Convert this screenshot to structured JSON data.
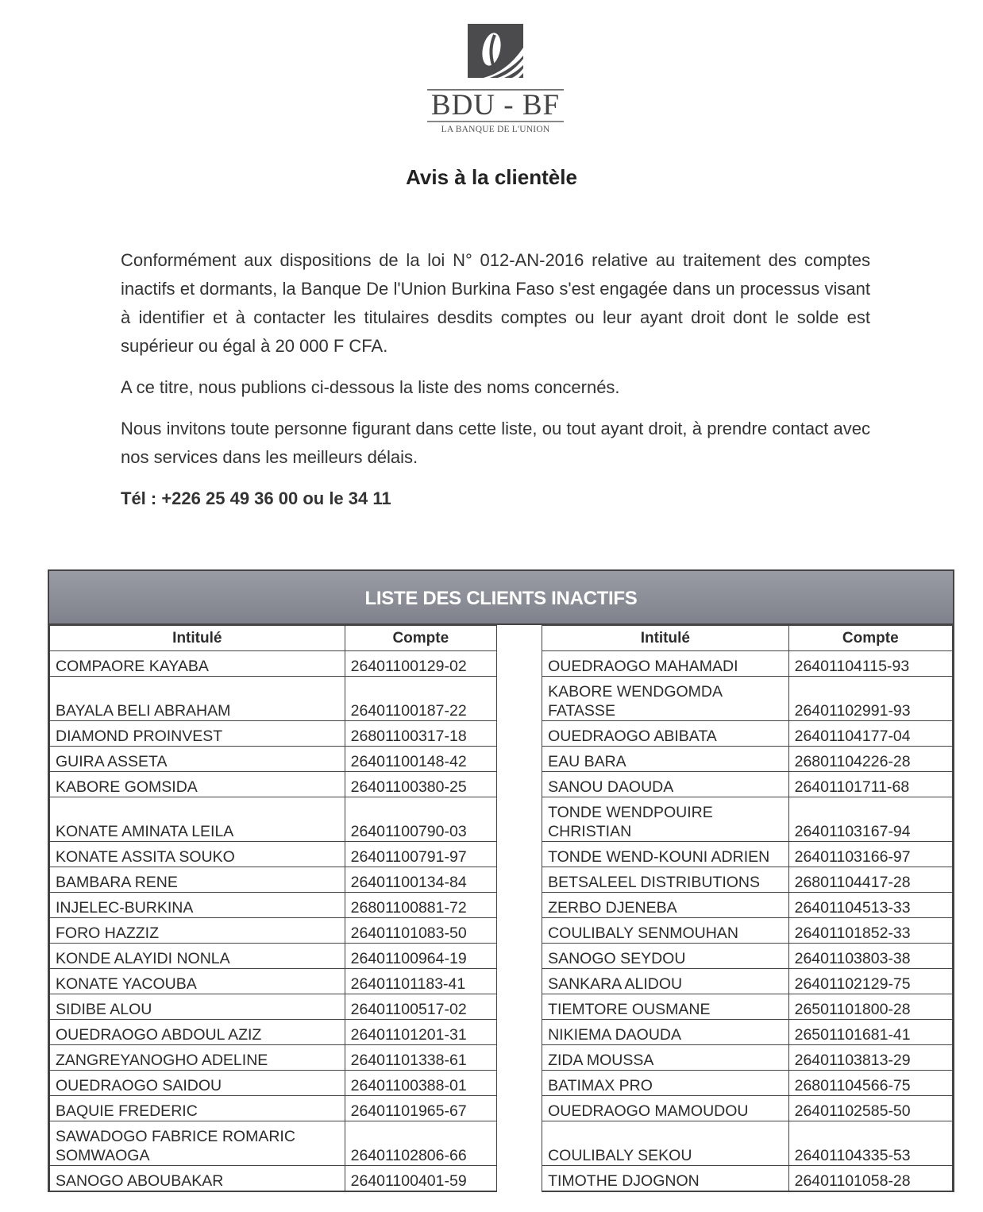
{
  "logo": {
    "name": "BDU - BF",
    "tagline": "LA BANQUE DE L'UNION"
  },
  "title": "Avis à la clientèle",
  "paragraphs": [
    "Conformément aux dispositions de la loi N° 012-AN-2016 relative au traitement des comptes inactifs et dormants, la Banque De l'Union Burkina Faso s'est engagée dans un processus visant à identifier et à contacter les titulaires desdits comptes ou leur ayant droit dont le solde est supérieur ou égal à 20 000 F CFA.",
    "A ce titre, nous publions ci-dessous la liste des noms concernés.",
    "Nous invitons toute personne figurant dans cette liste, ou tout ayant droit, à prendre contact avec nos services dans les meilleurs délais."
  ],
  "phone": "Tél : +226 25 49 36 00 ou le 34 11",
  "table": {
    "title": "LISTE DES CLIENTS INACTIFS",
    "headers": [
      "Intitulé",
      "Compte"
    ],
    "rows": [
      {
        "left": [
          "COMPAORE  KAYABA",
          "26401100129-02"
        ],
        "right": [
          "OUEDRAOGO  MAHAMADI",
          "26401104115-93"
        ]
      },
      {
        "tall": true,
        "left": [
          "BAYALA  BELI ABRAHAM",
          "26401100187-22"
        ],
        "right": [
          "KABORE  WENDGOMDA FATASSE",
          "26401102991-93"
        ]
      },
      {
        "left": [
          "DIAMOND PROINVEST",
          "26801100317-18"
        ],
        "right": [
          "OUEDRAOGO  ABIBATA",
          "26401104177-04"
        ]
      },
      {
        "left": [
          "GUIRA  ASSETA",
          "26401100148-42"
        ],
        "right": [
          "EAU BARA",
          "26801104226-28"
        ]
      },
      {
        "left": [
          "KABORE  GOMSIDA",
          "26401100380-25"
        ],
        "right": [
          "SANOU  DAOUDA",
          "26401101711-68"
        ]
      },
      {
        "tall": true,
        "left": [
          "KONATE  AMINATA LEILA",
          "26401100790-03"
        ],
        "right": [
          "TONDE  WENDPOUIRE CHRISTIAN",
          "26401103167-94"
        ]
      },
      {
        "left": [
          "KONATE  ASSITA SOUKO",
          "26401100791-97"
        ],
        "right": [
          "TONDE  WEND-KOUNI ADRIEN",
          "26401103166-97"
        ]
      },
      {
        "left": [
          "BAMBARA  RENE",
          "26401100134-84"
        ],
        "right": [
          "BETSALEEL DISTRIBUTIONS",
          "26801104417-28"
        ]
      },
      {
        "left": [
          "INJELEC-BURKINA",
          "26801100881-72"
        ],
        "right": [
          "ZERBO  DJENEBA",
          "26401104513-33"
        ]
      },
      {
        "left": [
          "FORO  HAZZIZ",
          "26401101083-50"
        ],
        "right": [
          "COULIBALY  SENMOUHAN",
          "26401101852-33"
        ]
      },
      {
        "left": [
          "KONDE  ALAYIDI NONLA",
          "26401100964-19"
        ],
        "right": [
          "SANOGO  SEYDOU",
          "26401103803-38"
        ]
      },
      {
        "left": [
          "KONATE  YACOUBA",
          "26401101183-41"
        ],
        "right": [
          "SANKARA  ALIDOU",
          "26401102129-75"
        ]
      },
      {
        "left": [
          "SIDIBE  ALOU",
          "26401100517-02"
        ],
        "right": [
          "TIEMTORE  OUSMANE",
          "26501101800-28"
        ]
      },
      {
        "left": [
          "OUEDRAOGO  ABDOUL AZIZ",
          "26401101201-31"
        ],
        "right": [
          "NIKIEMA  DAOUDA",
          "26501101681-41"
        ]
      },
      {
        "left": [
          "ZANGREYANOGHO  ADELINE",
          "26401101338-61"
        ],
        "right": [
          "ZIDA  MOUSSA",
          "26401103813-29"
        ]
      },
      {
        "left": [
          "OUEDRAOGO  SAIDOU",
          "26401100388-01"
        ],
        "right": [
          "BATIMAX PRO",
          "26801104566-75"
        ]
      },
      {
        "left": [
          "BAQUIE  FREDERIC",
          "26401101965-67"
        ],
        "right": [
          "OUEDRAOGO  MAMOUDOU",
          "26401102585-50"
        ]
      },
      {
        "tall": true,
        "left": [
          "SAWADOGO  FABRICE ROMARIC SOMWAOGA",
          "26401102806-66"
        ],
        "right": [
          "COULIBALY  SEKOU",
          "26401104335-53"
        ]
      },
      {
        "left": [
          "SANOGO  ABOUBAKAR",
          "26401100401-59"
        ],
        "right": [
          "TIMOTHE  DJOGNON",
          "26401101058-28"
        ]
      }
    ]
  }
}
